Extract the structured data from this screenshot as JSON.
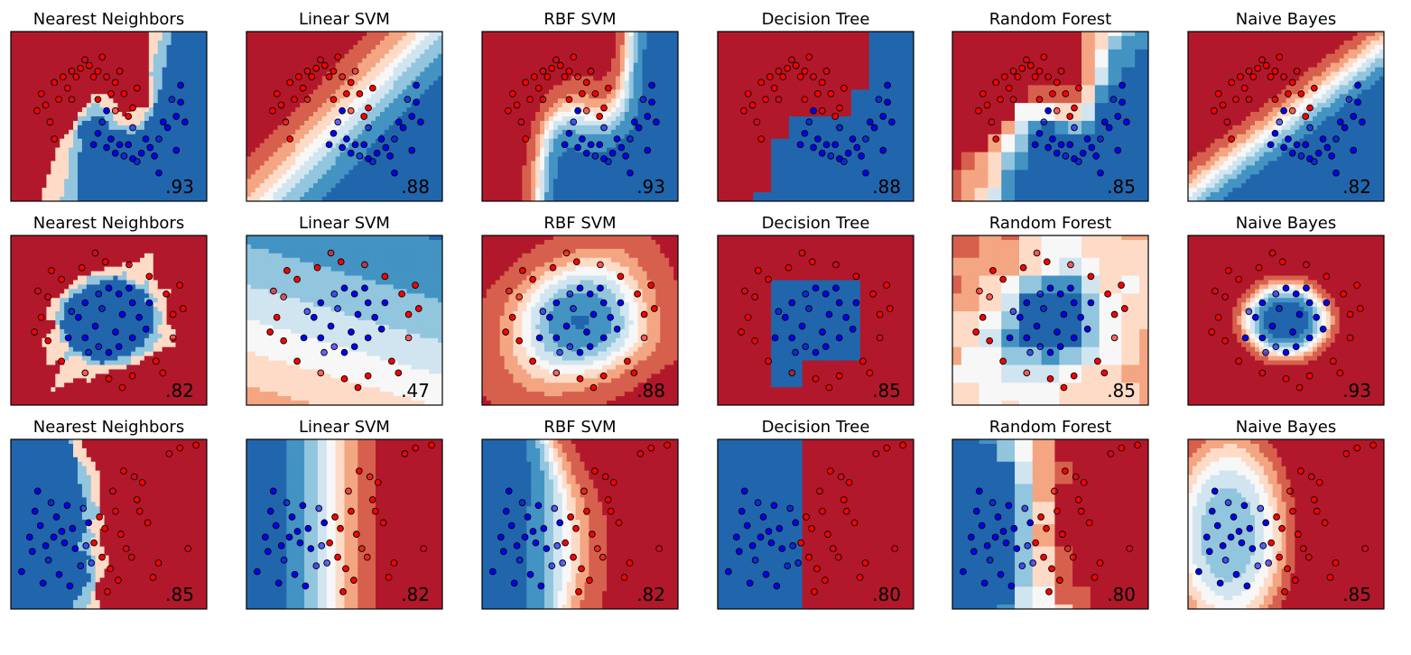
{
  "chart_data": {
    "type": "scatter",
    "description_grid": {
      "rows": 3,
      "cols": 6
    },
    "colors": {
      "class_red": "#ff0000",
      "class_blue": "#0000ff",
      "marker_edge": "#000000",
      "cmap_rdbu": [
        "#b2182b",
        "#d6604d",
        "#f4a582",
        "#fddbc7",
        "#f7f7f7",
        "#d1e5f0",
        "#92c5de",
        "#4393c3",
        "#2166ac"
      ]
    },
    "panels": [
      {
        "row": 0,
        "col": 0,
        "title": "Nearest Neighbors",
        "score": ".93",
        "dataset": "moons"
      },
      {
        "row": 0,
        "col": 1,
        "title": "Linear SVM",
        "score": ".88",
        "dataset": "moons"
      },
      {
        "row": 0,
        "col": 2,
        "title": "RBF SVM",
        "score": ".93",
        "dataset": "moons"
      },
      {
        "row": 0,
        "col": 3,
        "title": "Decision Tree",
        "score": ".88",
        "dataset": "moons"
      },
      {
        "row": 0,
        "col": 4,
        "title": "Random Forest",
        "score": ".85",
        "dataset": "moons"
      },
      {
        "row": 0,
        "col": 5,
        "title": "Naive Bayes",
        "score": ".82",
        "dataset": "moons"
      },
      {
        "row": 1,
        "col": 0,
        "title": "Nearest Neighbors",
        "score": ".82",
        "dataset": "circles"
      },
      {
        "row": 1,
        "col": 1,
        "title": "Linear SVM",
        "score": ".47",
        "dataset": "circles"
      },
      {
        "row": 1,
        "col": 2,
        "title": "RBF SVM",
        "score": ".88",
        "dataset": "circles"
      },
      {
        "row": 1,
        "col": 3,
        "title": "Decision Tree",
        "score": ".85",
        "dataset": "circles"
      },
      {
        "row": 1,
        "col": 4,
        "title": "Random Forest",
        "score": ".85",
        "dataset": "circles"
      },
      {
        "row": 1,
        "col": 5,
        "title": "Naive Bayes",
        "score": ".93",
        "dataset": "circles"
      },
      {
        "row": 2,
        "col": 0,
        "title": "Nearest Neighbors",
        "score": ".85",
        "dataset": "linear"
      },
      {
        "row": 2,
        "col": 1,
        "title": "Linear SVM",
        "score": ".82",
        "dataset": "linear"
      },
      {
        "row": 2,
        "col": 2,
        "title": "RBF SVM",
        "score": ".82",
        "dataset": "linear"
      },
      {
        "row": 2,
        "col": 3,
        "title": "Decision Tree",
        "score": ".80",
        "dataset": "linear"
      },
      {
        "row": 2,
        "col": 4,
        "title": "Random Forest",
        "score": ".80",
        "dataset": "linear"
      },
      {
        "row": 2,
        "col": 5,
        "title": "Naive Bayes",
        "score": ".85",
        "dataset": "linear"
      }
    ],
    "datasets": {
      "moons": {
        "xlim": [
          -1.9,
          2.6
        ],
        "ylim": [
          -1.3,
          1.7
        ],
        "red": [
          [
            -1.1,
            0.4
          ],
          [
            -0.9,
            0.8
          ],
          [
            -0.7,
            0.9
          ],
          [
            -0.5,
            1.0
          ],
          [
            -0.3,
            1.05
          ],
          [
            -0.1,
            1.1
          ],
          [
            0.1,
            1.0
          ],
          [
            0.3,
            0.9
          ],
          [
            0.5,
            0.8
          ],
          [
            0.7,
            0.6
          ],
          [
            0.9,
            0.35
          ],
          [
            -1.0,
            0.1
          ],
          [
            -0.8,
            0.5
          ],
          [
            -0.6,
            0.7
          ],
          [
            -0.4,
            0.9
          ],
          [
            -0.2,
            1.2
          ],
          [
            0.0,
            0.9
          ],
          [
            0.2,
            1.25
          ],
          [
            0.4,
            0.6
          ],
          [
            0.6,
            1.0
          ],
          [
            0.8,
            0.2
          ],
          [
            -1.3,
            0.3
          ],
          [
            -1.2,
            0.6
          ],
          [
            -0.5,
            0.5
          ],
          [
            0.1,
            0.5
          ],
          [
            1.0,
            0.7
          ],
          [
            -0.9,
            -0.2
          ],
          [
            0.5,
            0.3
          ]
        ],
        "blue": [
          [
            0.1,
            -0.1
          ],
          [
            0.3,
            -0.35
          ],
          [
            0.5,
            -0.45
          ],
          [
            0.7,
            -0.5
          ],
          [
            0.9,
            -0.55
          ],
          [
            1.1,
            -0.45
          ],
          [
            1.3,
            -0.35
          ],
          [
            1.5,
            -0.2
          ],
          [
            1.7,
            0.0
          ],
          [
            1.9,
            0.2
          ],
          [
            2.0,
            0.45
          ],
          [
            0.2,
            0.1
          ],
          [
            0.4,
            -0.2
          ],
          [
            0.6,
            -0.3
          ],
          [
            0.8,
            -0.3
          ],
          [
            1.0,
            -0.6
          ],
          [
            1.2,
            -0.2
          ],
          [
            1.4,
            -0.5
          ],
          [
            1.6,
            0.1
          ],
          [
            1.8,
            0.5
          ],
          [
            2.1,
            0.1
          ],
          [
            0.0,
            -0.3
          ],
          [
            1.9,
            -0.4
          ],
          [
            0.9,
            0.0
          ],
          [
            1.5,
            -0.8
          ],
          [
            0.3,
            0.3
          ],
          [
            2.0,
            0.75
          ]
        ]
      },
      "circles": {
        "xlim": [
          -1.45,
          1.45
        ],
        "ylim": [
          -1.45,
          1.45
        ],
        "red": [
          [
            0.95,
            0.1
          ],
          [
            0.85,
            0.45
          ],
          [
            0.6,
            0.75
          ],
          [
            0.3,
            0.95
          ],
          [
            -0.05,
            1.0
          ],
          [
            -0.4,
            0.9
          ],
          [
            -0.7,
            0.7
          ],
          [
            -0.9,
            0.4
          ],
          [
            -1.0,
            0.05
          ],
          [
            -0.9,
            -0.35
          ],
          [
            -0.7,
            -0.7
          ],
          [
            -0.35,
            -0.9
          ],
          [
            0.0,
            -1.0
          ],
          [
            0.35,
            -0.95
          ],
          [
            0.7,
            -0.7
          ],
          [
            0.95,
            -0.3
          ],
          [
            1.1,
            0.2
          ],
          [
            -1.1,
            -0.2
          ],
          [
            0.2,
            -1.15
          ],
          [
            -0.2,
            1.15
          ],
          [
            0.8,
            -0.9
          ],
          [
            -0.85,
            0.85
          ],
          [
            1.05,
            0.6
          ],
          [
            -1.05,
            0.5
          ]
        ],
        "blue": [
          [
            0.45,
            0.05
          ],
          [
            0.35,
            0.3
          ],
          [
            0.15,
            0.45
          ],
          [
            -0.15,
            0.45
          ],
          [
            -0.35,
            0.3
          ],
          [
            -0.45,
            0.05
          ],
          [
            -0.35,
            -0.3
          ],
          [
            -0.15,
            -0.45
          ],
          [
            0.15,
            -0.45
          ],
          [
            0.35,
            -0.3
          ],
          [
            0.2,
            0.1
          ],
          [
            -0.1,
            0.2
          ],
          [
            -0.2,
            -0.1
          ],
          [
            0.1,
            -0.2
          ],
          [
            0.55,
            -0.15
          ],
          [
            -0.55,
            0.15
          ],
          [
            0.0,
            0.55
          ],
          [
            0.0,
            -0.55
          ],
          [
            0.3,
            0.55
          ],
          [
            -0.3,
            -0.55
          ],
          [
            0.6,
            0.3
          ],
          [
            -0.6,
            -0.3
          ]
        ]
      },
      "linear": {
        "xlim": [
          -2.7,
          4.6
        ],
        "ylim": [
          -2.6,
          3.3
        ],
        "red": [
          [
            0.4,
            -0.3
          ],
          [
            0.8,
            0.2
          ],
          [
            1.2,
            0.8
          ],
          [
            1.6,
            -0.5
          ],
          [
            2.0,
            1.2
          ],
          [
            2.4,
            0.4
          ],
          [
            2.8,
            -1.0
          ],
          [
            3.2,
            2.8
          ],
          [
            3.6,
            3.0
          ],
          [
            1.0,
            -1.2
          ],
          [
            1.4,
            0.0
          ],
          [
            1.8,
            -0.8
          ],
          [
            2.2,
            1.8
          ],
          [
            2.6,
            -1.5
          ],
          [
            0.9,
            -2.0
          ],
          [
            1.1,
            1.5
          ],
          [
            0.6,
            0.6
          ],
          [
            1.5,
            2.2
          ],
          [
            2.1,
            0.8
          ],
          [
            3.9,
            -0.5
          ],
          [
            4.2,
            3.1
          ],
          [
            0.7,
            -0.8
          ],
          [
            1.3,
            -1.6
          ],
          [
            1.9,
            2.0
          ]
        ],
        "blue": [
          [
            -2.3,
            -1.3
          ],
          [
            -1.9,
            -0.6
          ],
          [
            -1.6,
            0.3
          ],
          [
            -1.3,
            -0.9
          ],
          [
            -1.0,
            0.6
          ],
          [
            -0.7,
            -0.3
          ],
          [
            -0.4,
            0.2
          ],
          [
            -0.1,
            -1.1
          ],
          [
            0.2,
            0.4
          ],
          [
            -1.8,
            0.8
          ],
          [
            -1.5,
            -1.7
          ],
          [
            -1.2,
            1.1
          ],
          [
            -0.9,
            -1.4
          ],
          [
            -0.6,
            1.0
          ],
          [
            -0.3,
            -0.5
          ],
          [
            0.0,
            0.9
          ],
          [
            -2.0,
            -0.1
          ],
          [
            -1.1,
            -0.1
          ],
          [
            -0.5,
            -1.8
          ],
          [
            0.1,
            -0.4
          ],
          [
            -1.7,
            1.5
          ],
          [
            -0.8,
            0.1
          ],
          [
            -1.4,
            -0.4
          ],
          [
            0.3,
            -1.0
          ]
        ]
      }
    }
  }
}
